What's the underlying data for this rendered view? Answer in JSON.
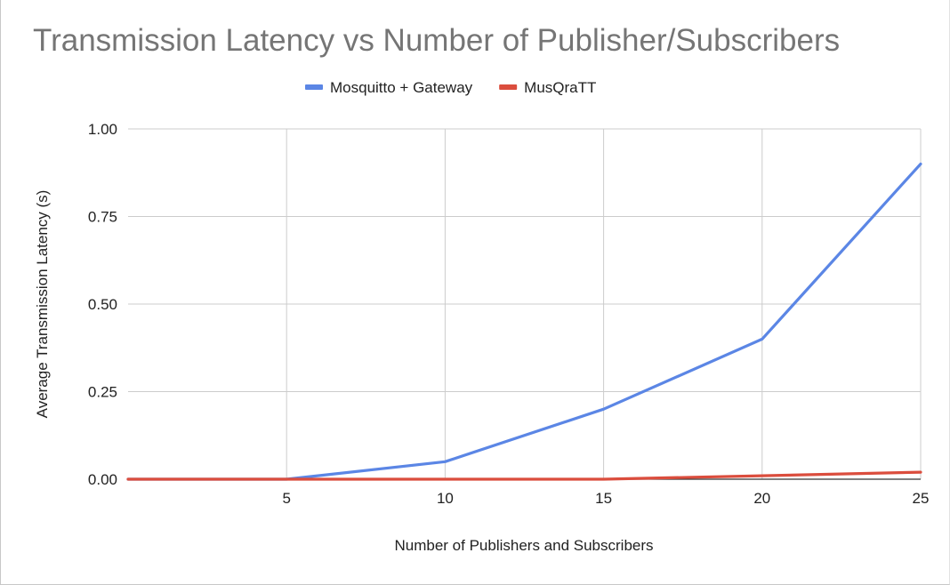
{
  "chart_data": {
    "type": "line",
    "title": "Transmission Latency vs Number of Publisher/Subscribers",
    "xlabel": "Number of Publishers and Subscribers",
    "ylabel": "Average Transmission Latency (s)",
    "x": [
      0,
      5,
      10,
      15,
      20,
      25
    ],
    "xlim": [
      0,
      25
    ],
    "ylim": [
      0,
      1
    ],
    "xticks": [
      5,
      10,
      15,
      20,
      25
    ],
    "xtick_labels": [
      "5",
      "10",
      "15",
      "20",
      "25"
    ],
    "yticks": [
      0,
      0.25,
      0.5,
      0.75,
      1
    ],
    "ytick_labels": [
      "0.00",
      "0.25",
      "0.50",
      "0.75",
      "1.00"
    ],
    "grid": true,
    "legend_position": "top",
    "series": [
      {
        "name": "Mosquitto + Gateway",
        "color": "#5b86e5",
        "values": [
          0,
          0,
          0.05,
          0.2,
          0.4,
          0.9
        ]
      },
      {
        "name": "MusQraTT",
        "color": "#db4d3d",
        "values": [
          0,
          0,
          0,
          0,
          0.01,
          0.02
        ]
      }
    ]
  }
}
